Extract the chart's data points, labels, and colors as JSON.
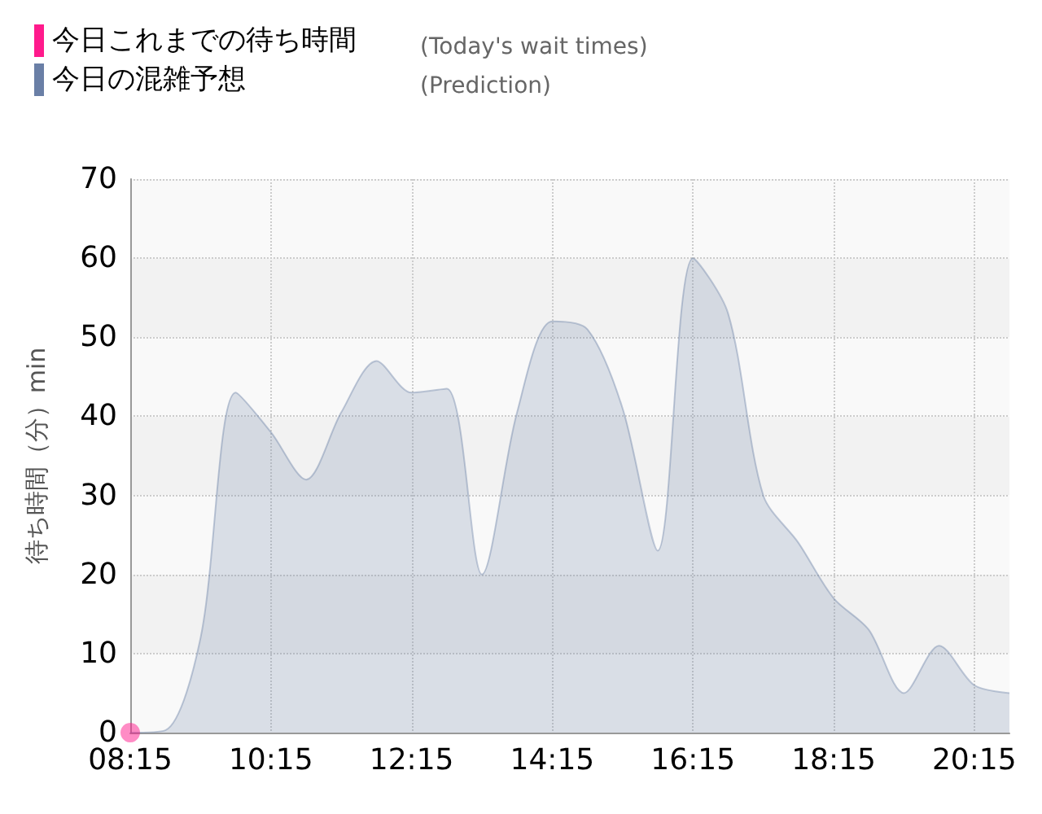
{
  "chart_data": {
    "type": "area",
    "ylabel": "待ち時間（分）min",
    "legend": "top left",
    "grid": true,
    "annotations": [
      "(Today's wait times)",
      "(Prediction)"
    ],
    "xlim": [
      8.25,
      20.75
    ],
    "xticks": [
      {
        "value": 8.25,
        "label": "08:15"
      },
      {
        "value": 10.25,
        "label": "10:15"
      },
      {
        "value": 12.25,
        "label": "12:15"
      },
      {
        "value": 14.25,
        "label": "14:15"
      },
      {
        "value": 16.25,
        "label": "16:15"
      },
      {
        "value": 18.25,
        "label": "18:15"
      },
      {
        "value": 20.25,
        "label": "20:15"
      }
    ],
    "ylim": [
      0,
      70
    ],
    "yticks": [
      0,
      10,
      20,
      30,
      40,
      50,
      60,
      70
    ],
    "series": [
      {
        "name": "今日これまでの待ち時間",
        "type": "scatter",
        "color": "#ff1a8c",
        "marker": "circle",
        "x": [
          8.25
        ],
        "values": [
          0
        ]
      },
      {
        "name": "今日の混雑予想",
        "color": "#6a7fa6",
        "marker": "none",
        "x": [
          8.25,
          8.75,
          9.25,
          9.75,
          10.25,
          10.75,
          11.25,
          11.75,
          12.25,
          12.75,
          13.25,
          13.75,
          14.25,
          14.75,
          15.25,
          15.75,
          16.25,
          16.75,
          17.25,
          17.75,
          18.25,
          18.75,
          19.25,
          19.75,
          20.25,
          20.75
        ],
        "values": [
          0,
          0.3,
          12,
          43,
          38,
          32,
          40.5,
          47,
          43,
          43.5,
          20,
          40.5,
          52,
          51,
          41,
          23,
          60,
          53,
          30,
          24,
          17,
          13,
          5,
          11,
          6,
          5
        ]
      }
    ]
  }
}
